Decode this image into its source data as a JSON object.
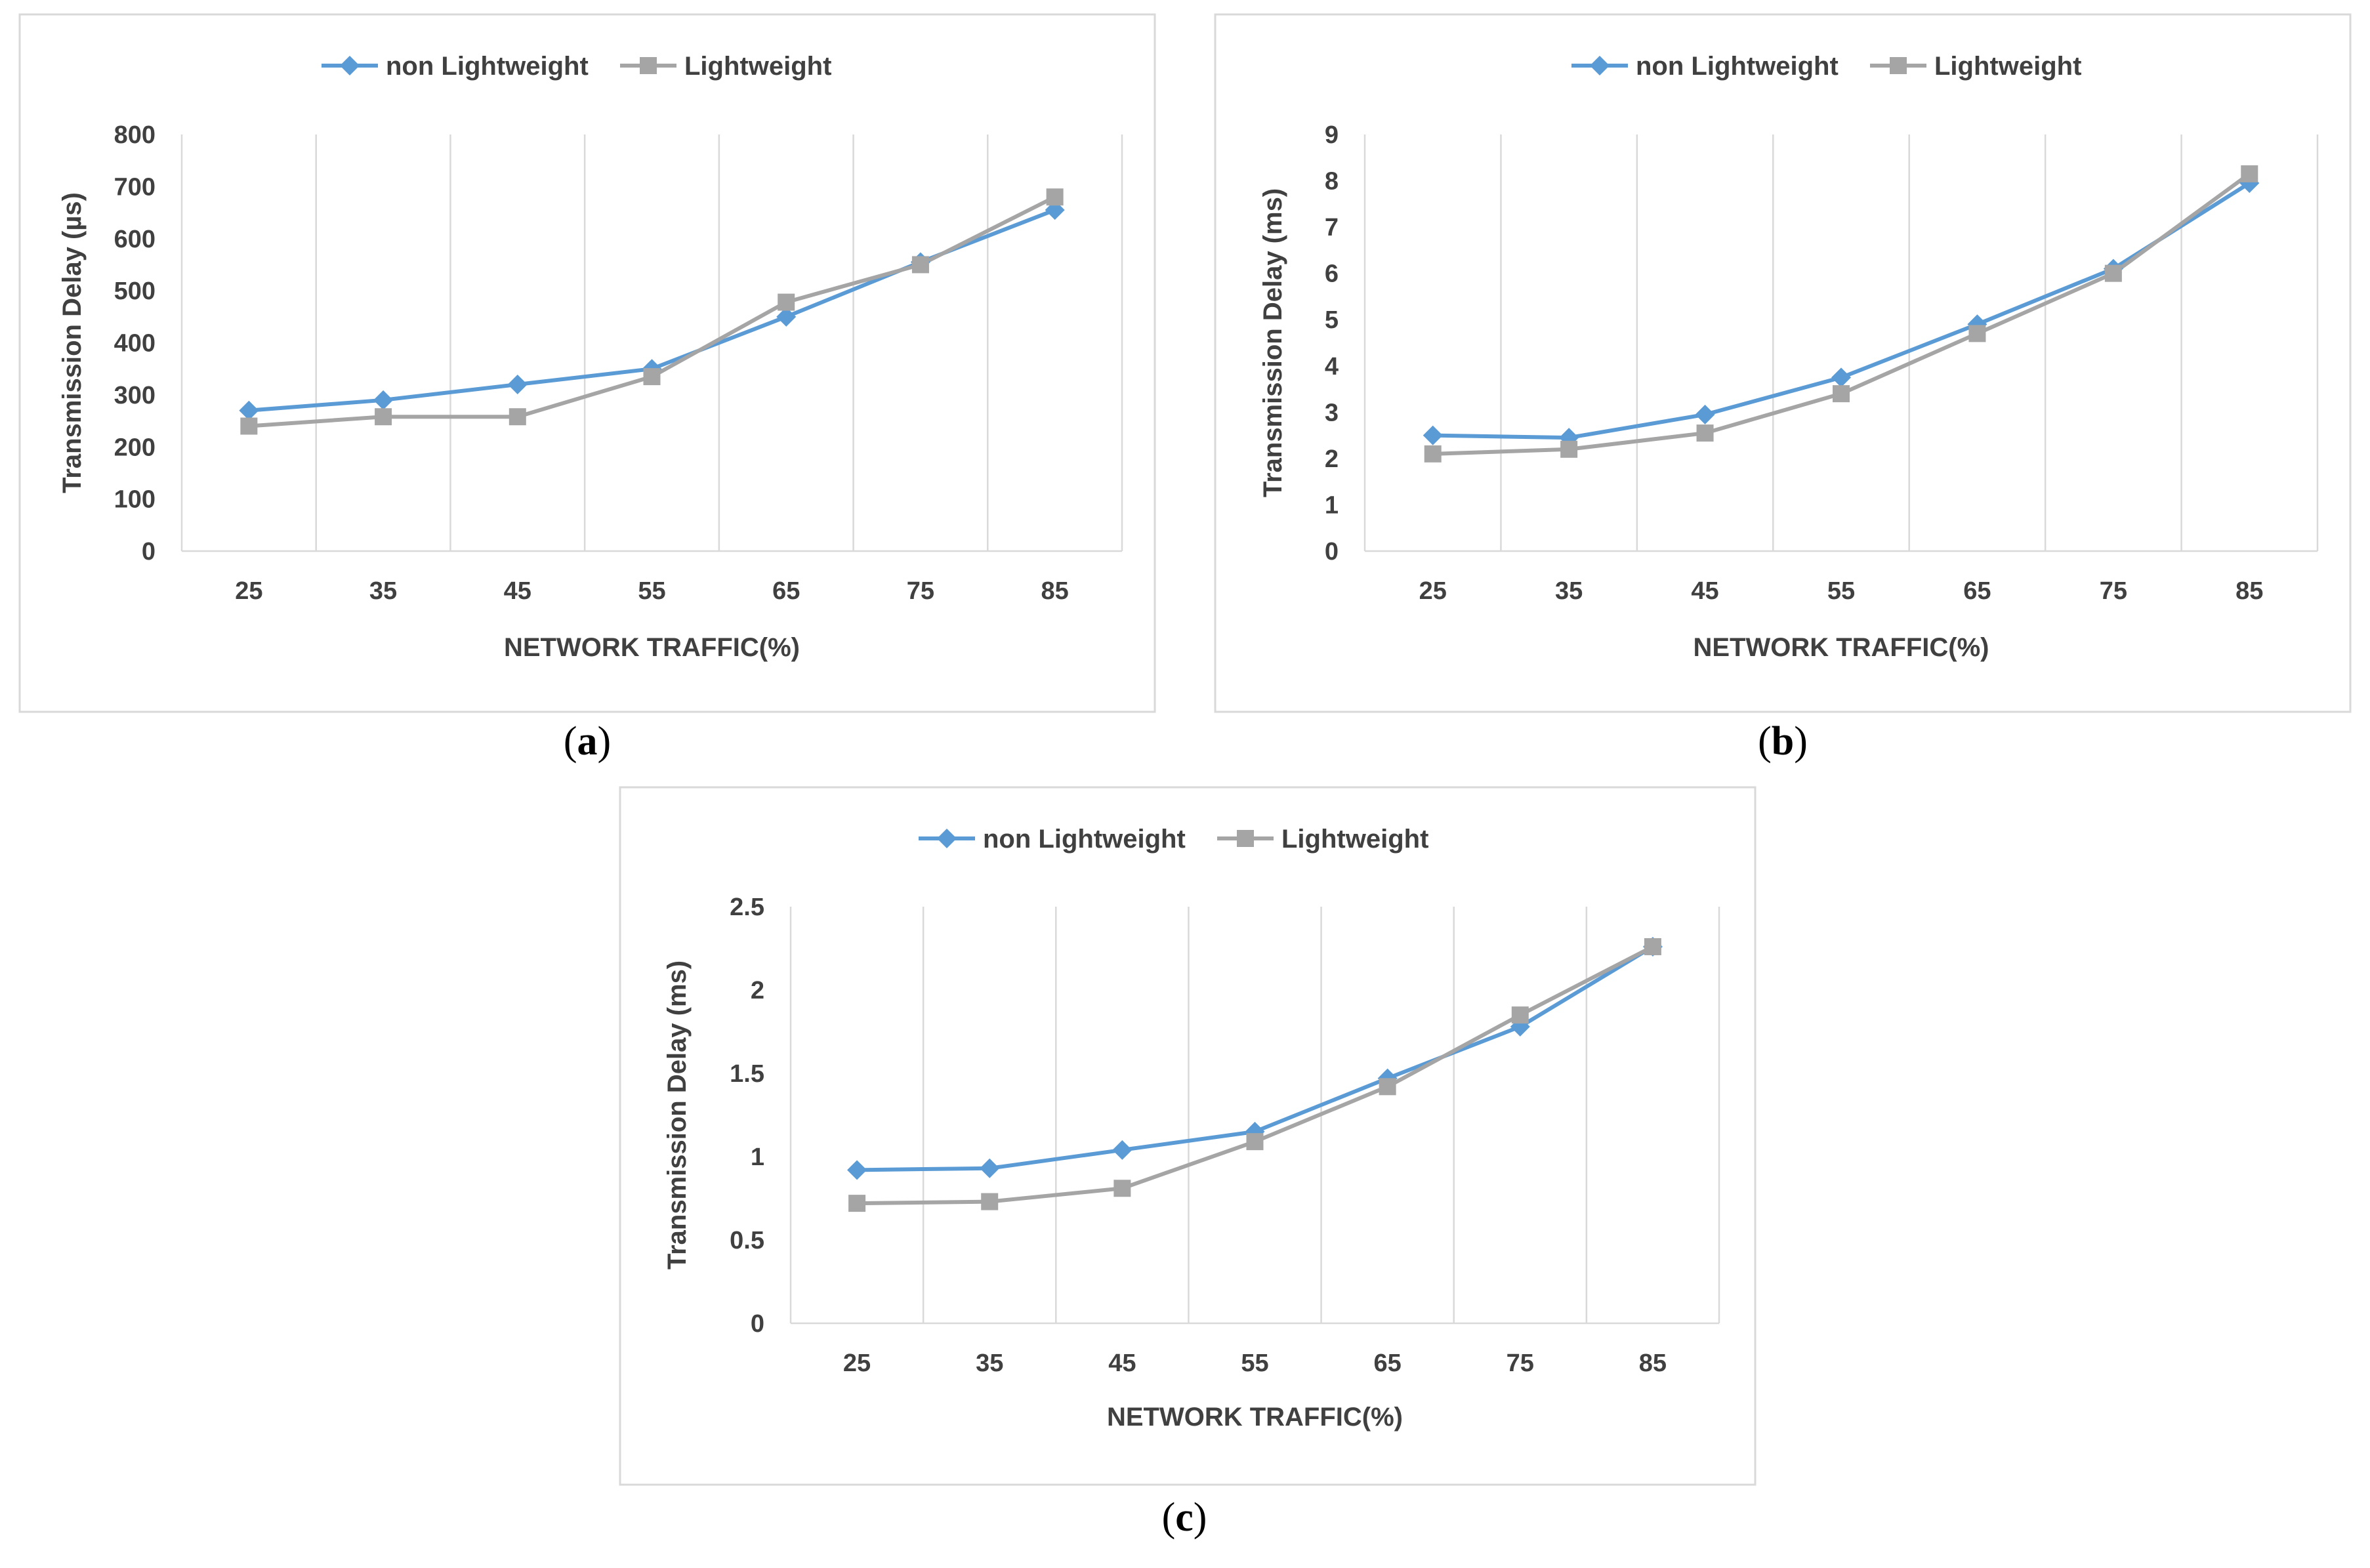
{
  "colors": {
    "series_0": "#5b9bd5",
    "series_1": "#a5a5a5"
  },
  "chart_data": [
    {
      "type": "line",
      "caption": "a",
      "title": "",
      "xlabel": "NETWORK TRAFFIC(%)",
      "ylabel": "Transmission Delay (µs)",
      "categories": [
        "25",
        "35",
        "45",
        "55",
        "65",
        "75",
        "85"
      ],
      "yticks": [
        "0",
        "100",
        "200",
        "300",
        "400",
        "500",
        "600",
        "700",
        "800"
      ],
      "ylim": [
        0,
        800
      ],
      "legend_position": "top",
      "grid": "vertical",
      "series": [
        {
          "name": "non Lightweight",
          "marker": "diamond",
          "values": [
            270,
            290,
            320,
            350,
            450,
            555,
            655
          ]
        },
        {
          "name": "Lightweight",
          "marker": "square",
          "values": [
            240,
            258,
            258,
            335,
            478,
            550,
            680
          ]
        }
      ]
    },
    {
      "type": "line",
      "caption": "b",
      "title": "",
      "xlabel": "NETWORK TRAFFIC(%)",
      "ylabel": "Transmission Delay (ms)",
      "categories": [
        "25",
        "35",
        "45",
        "55",
        "65",
        "75",
        "85"
      ],
      "yticks": [
        "0",
        "1",
        "2",
        "3",
        "4",
        "5",
        "6",
        "7",
        "8",
        "9"
      ],
      "ylim": [
        0,
        9
      ],
      "legend_position": "top",
      "grid": "vertical",
      "series": [
        {
          "name": "non Lightweight",
          "marker": "diamond",
          "values": [
            2.5,
            2.45,
            2.95,
            3.75,
            4.9,
            6.1,
            7.95
          ]
        },
        {
          "name": "Lightweight",
          "marker": "square",
          "values": [
            2.1,
            2.2,
            2.55,
            3.4,
            4.7,
            6.0,
            8.15
          ]
        }
      ]
    },
    {
      "type": "line",
      "caption": "c",
      "title": "",
      "xlabel": "NETWORK TRAFFIC(%)",
      "ylabel": "Transmission Delay (ms)",
      "categories": [
        "25",
        "35",
        "45",
        "55",
        "65",
        "75",
        "85"
      ],
      "yticks": [
        "0",
        "0.5",
        "1",
        "1.5",
        "2",
        "2.5"
      ],
      "ylim": [
        0,
        2.5
      ],
      "legend_position": "top",
      "grid": "vertical",
      "series": [
        {
          "name": "non Lightweight",
          "marker": "diamond",
          "values": [
            0.92,
            0.93,
            1.04,
            1.15,
            1.47,
            1.78,
            2.26
          ]
        },
        {
          "name": "Lightweight",
          "marker": "square",
          "values": [
            0.72,
            0.73,
            0.81,
            1.09,
            1.42,
            1.85,
            2.26
          ]
        }
      ]
    }
  ]
}
